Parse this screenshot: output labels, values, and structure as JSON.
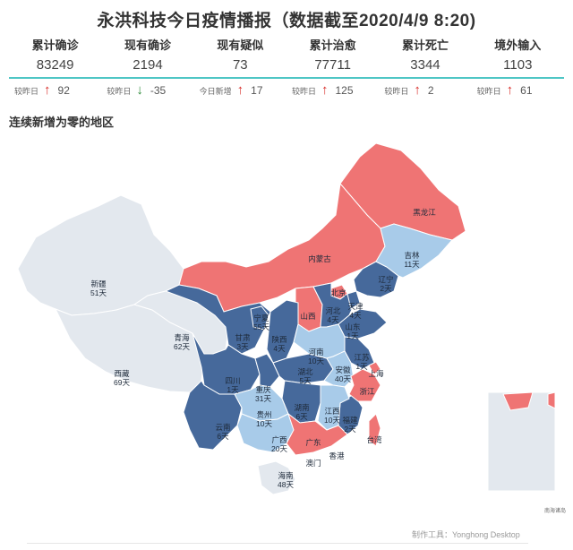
{
  "header": {
    "title": "永洪科技今日疫情播报（数据截至2020/4/9 8:20)"
  },
  "stats": [
    {
      "label": "累计确诊",
      "value": "83249",
      "delta_label": "较昨日",
      "direction": "up",
      "delta": "92"
    },
    {
      "label": "现有确诊",
      "value": "2194",
      "delta_label": "较昨日",
      "direction": "down",
      "delta": "-35"
    },
    {
      "label": "现有疑似",
      "value": "73",
      "delta_label": "今日新增",
      "direction": "up",
      "delta": "17"
    },
    {
      "label": "累计治愈",
      "value": "77711",
      "delta_label": "较昨日",
      "direction": "up",
      "delta": "125"
    },
    {
      "label": "累计死亡",
      "value": "3344",
      "delta_label": "较昨日",
      "direction": "up",
      "delta": "2"
    },
    {
      "label": "境外输入",
      "value": "1103",
      "delta_label": "较昨日",
      "direction": "up",
      "delta": "61"
    }
  ],
  "section_title": "连续新增为零的地区",
  "colors": {
    "nonzero": "#ef7474",
    "dark": "#46699b",
    "light": "#a8cbe9",
    "pale": "#e3e8ee",
    "accent": "#4fc6c5",
    "up_arrow": "#d9302c",
    "down_arrow": "#2e8b3a"
  },
  "regions": [
    {
      "name": "新疆",
      "days": "51天"
    },
    {
      "name": "西藏",
      "days": "69天"
    },
    {
      "name": "青海",
      "days": "62天"
    },
    {
      "name": "黑龙江",
      "days": ""
    },
    {
      "name": "吉林",
      "days": "11天"
    },
    {
      "name": "内蒙古",
      "days": ""
    },
    {
      "name": "辽宁",
      "days": "2天"
    },
    {
      "name": "北京",
      "days": ""
    },
    {
      "name": "天津",
      "days": "4天"
    },
    {
      "name": "河北",
      "days": "4天"
    },
    {
      "name": "山西",
      "days": ""
    },
    {
      "name": "宁夏",
      "days": "55天"
    },
    {
      "name": "甘肃",
      "days": "3天"
    },
    {
      "name": "陕西",
      "days": "4天"
    },
    {
      "name": "山东",
      "days": "1天"
    },
    {
      "name": "河南",
      "days": "10天"
    },
    {
      "name": "江苏",
      "days": "1天"
    },
    {
      "name": "四川",
      "days": "1天"
    },
    {
      "name": "重庆",
      "days": "31天"
    },
    {
      "name": "湖北",
      "days": "5天"
    },
    {
      "name": "安徽",
      "days": "40天"
    },
    {
      "name": "上海",
      "days": ""
    },
    {
      "name": "浙江",
      "days": ""
    },
    {
      "name": "贵州",
      "days": "10天"
    },
    {
      "name": "湖南",
      "days": "6天"
    },
    {
      "name": "江西",
      "days": "10天"
    },
    {
      "name": "福建",
      "days": "2天"
    },
    {
      "name": "云南",
      "days": "6天"
    },
    {
      "name": "广西",
      "days": "20天"
    },
    {
      "name": "广东",
      "days": ""
    },
    {
      "name": "台湾",
      "days": ""
    },
    {
      "name": "澳门",
      "days": ""
    },
    {
      "name": "香港",
      "days": ""
    },
    {
      "name": "海南",
      "days": "48天"
    }
  ],
  "legend_note": "南海诸岛",
  "footer": "制作工具：Yonghong Desktop"
}
